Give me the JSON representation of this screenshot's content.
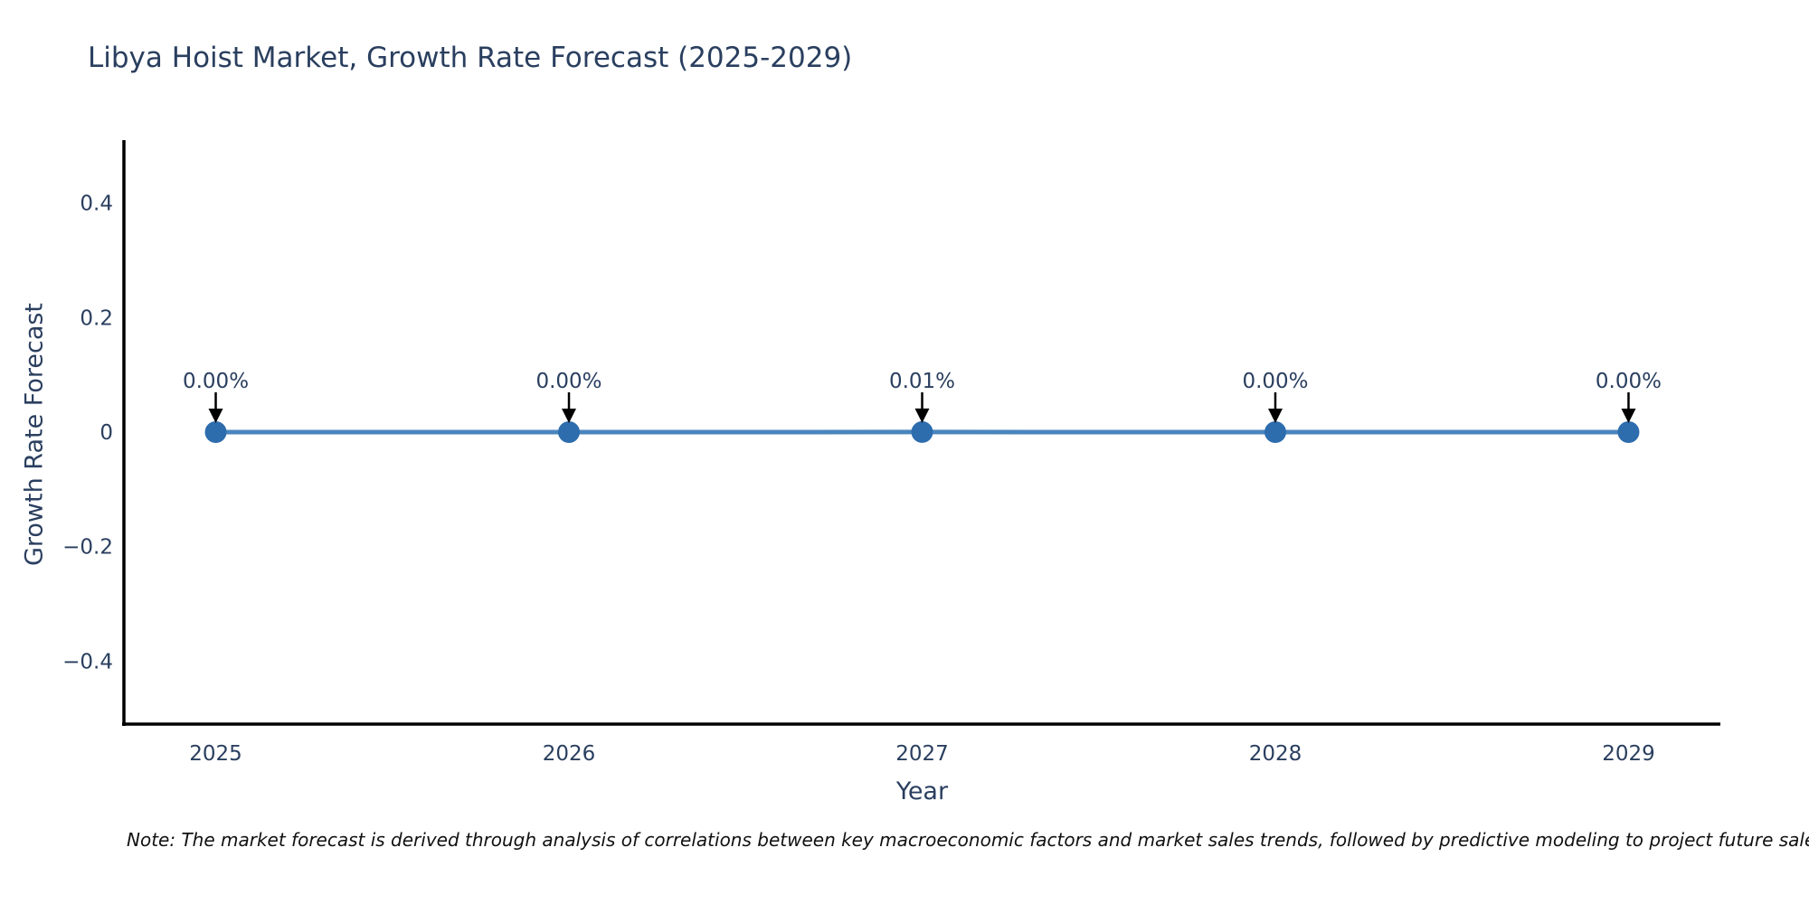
{
  "title": "Libya Hoist Market, Growth Rate Forecast (2025-2029)",
  "note": "Note: The market forecast is derived through analysis of correlations between key macroeconomic factors and market sales trends, followed by predictive modeling to project future sales.",
  "chart_data": {
    "type": "line",
    "title": "Libya Hoist Market, Growth Rate Forecast (2025-2029)",
    "xlabel": "Year",
    "ylabel": "Growth Rate Forecast",
    "x": [
      2025,
      2026,
      2027,
      2028,
      2029
    ],
    "x_tick_labels": [
      "2025",
      "2026",
      "2027",
      "2028",
      "2029"
    ],
    "series": [
      {
        "name": "Growth Rate Forecast",
        "values": [
          0.0,
          0.0,
          0.0001,
          0.0,
          0.0
        ]
      }
    ],
    "point_labels": [
      "0.00%",
      "0.00%",
      "0.01%",
      "0.00%",
      "0.00%"
    ],
    "y_ticks": [
      0.4,
      0.2,
      0,
      -0.2,
      -0.4
    ],
    "y_tick_labels": [
      "0.4",
      "0.2",
      "0",
      "−0.2",
      "−0.4"
    ],
    "ylim": [
      -0.51,
      0.51
    ],
    "xlim": [
      2024.74,
      2029.26
    ],
    "grid": false,
    "legend_position": "none",
    "colors": {
      "line": "#4a85bd",
      "marker": "#2d6cad",
      "axis_line": "#000000",
      "text": "#2a3f5f",
      "annotation_arrow": "#000000"
    }
  }
}
